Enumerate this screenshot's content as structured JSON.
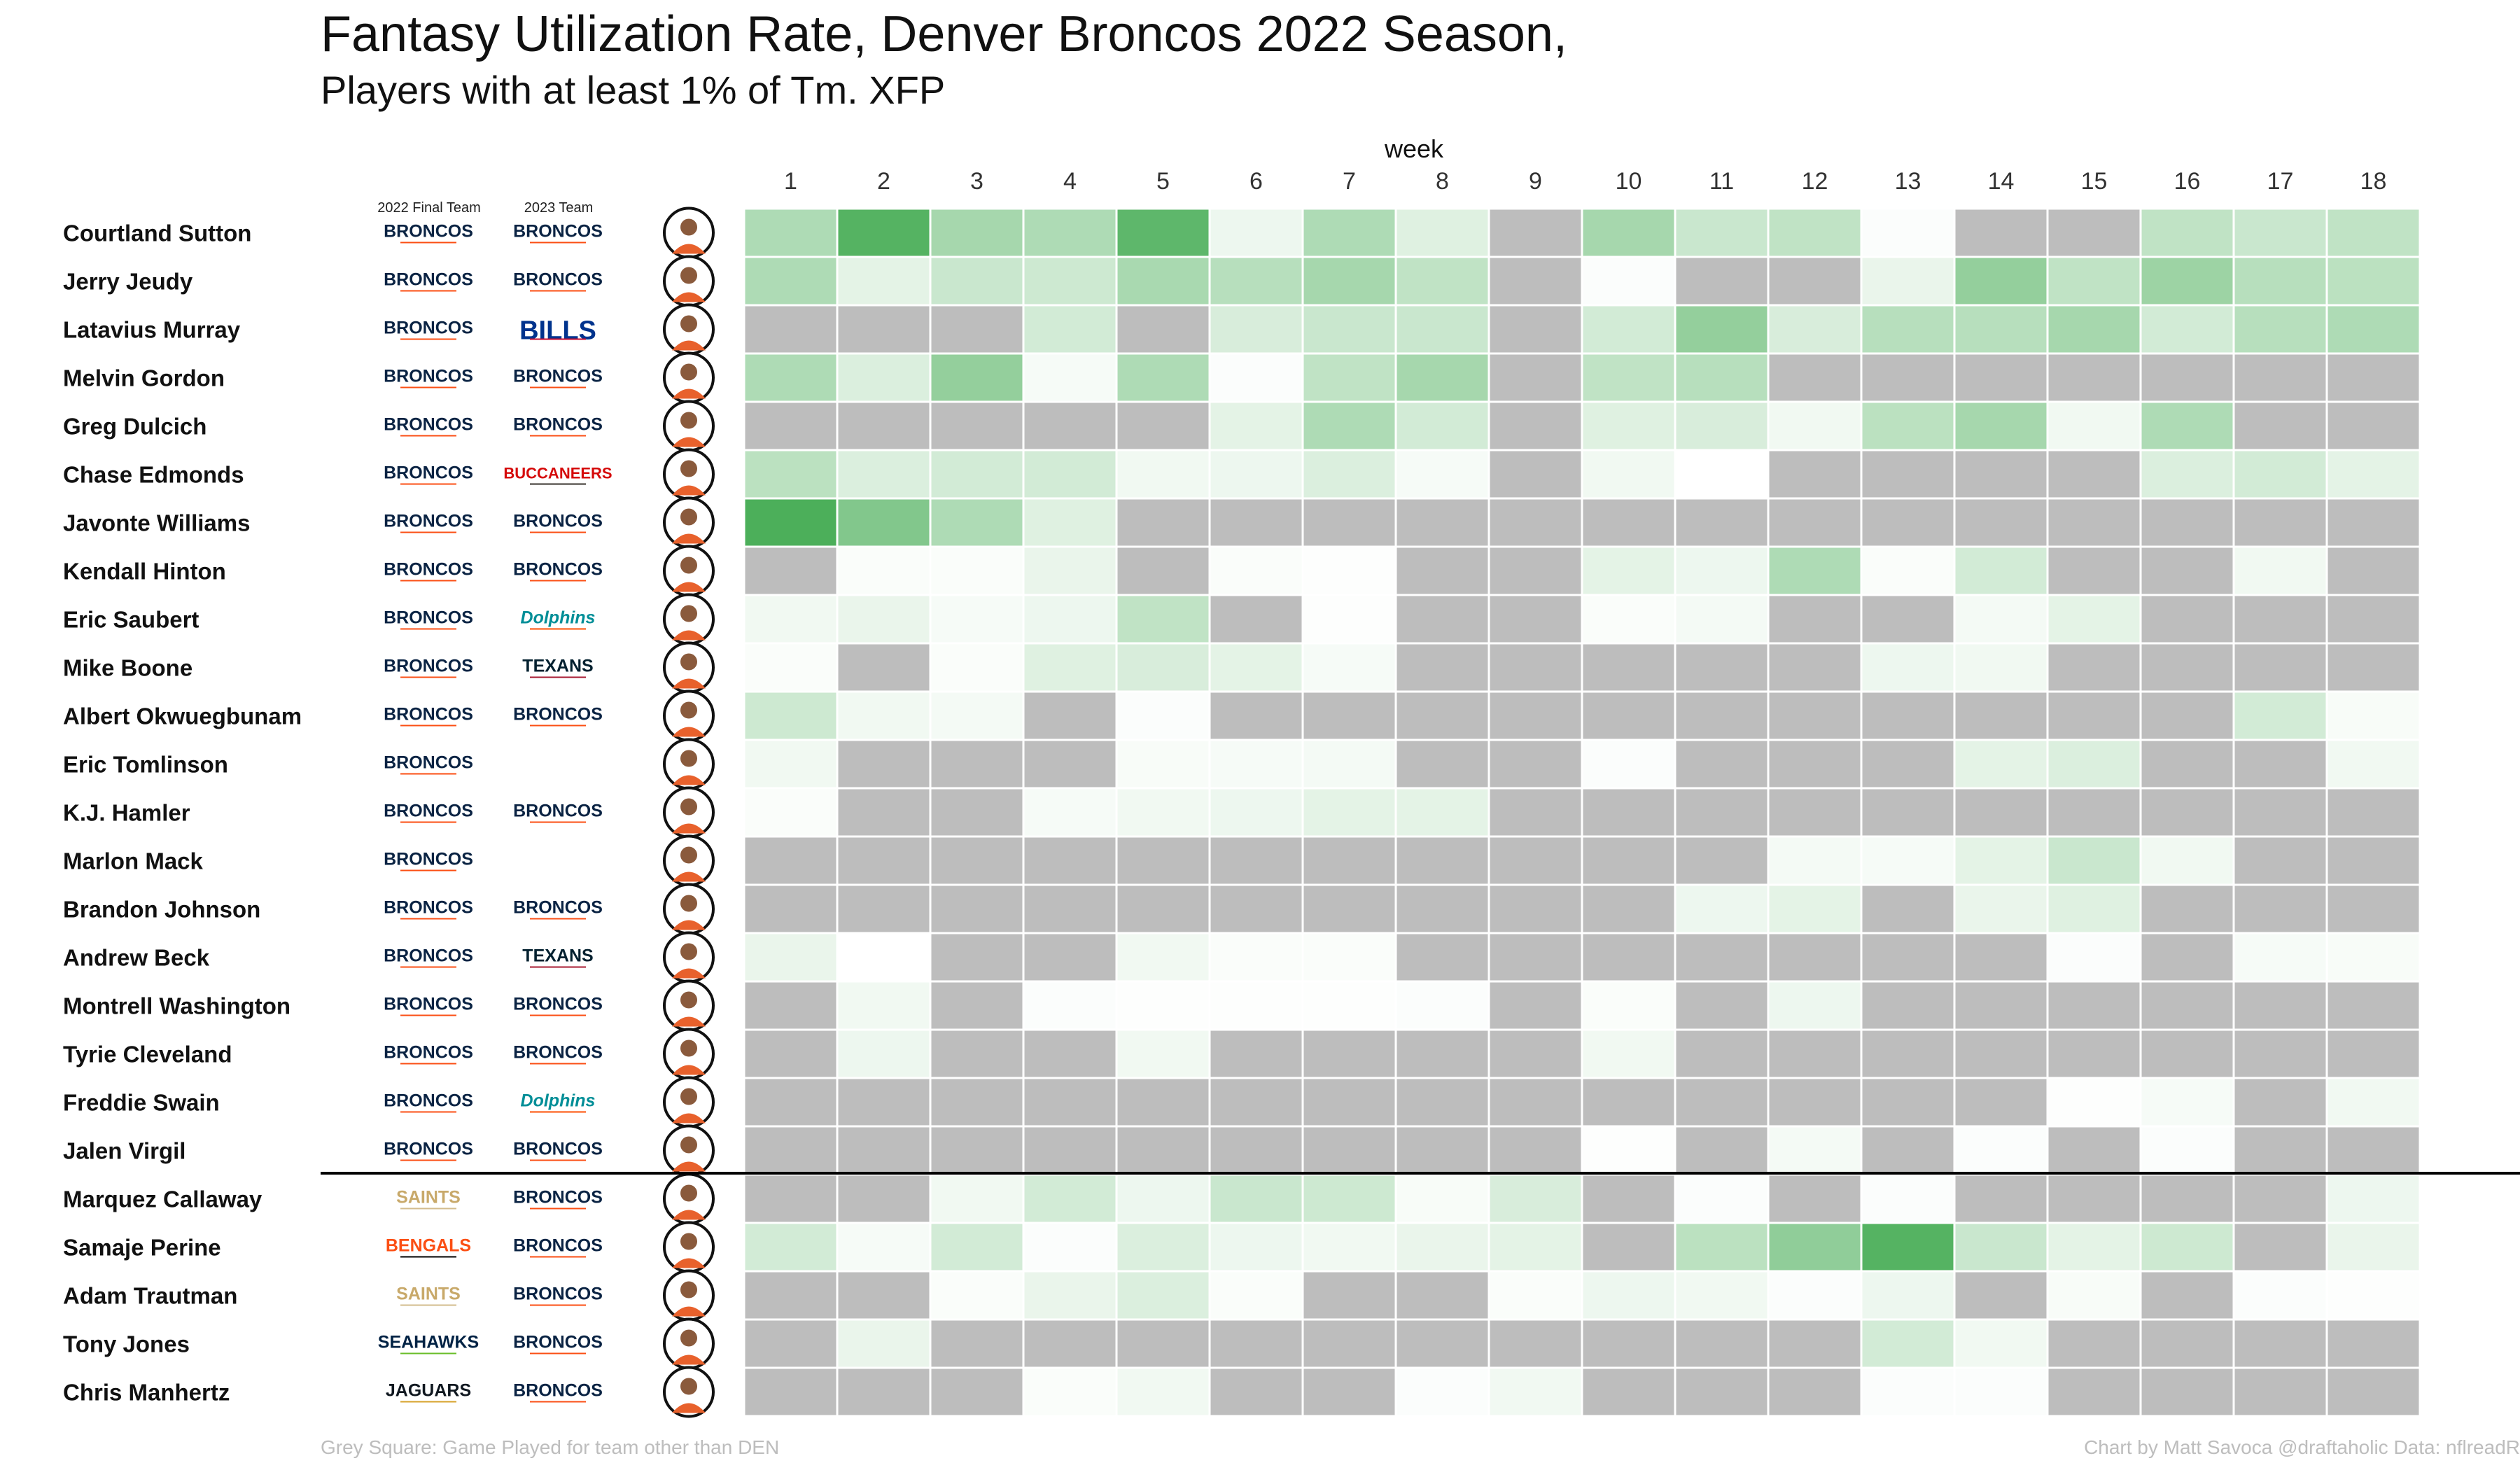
{
  "title": "Fantasy Utilization Rate, Denver Broncos 2022 Season,",
  "subtitle": "Players with at least 1% of Tm. XFP",
  "column_headers": {
    "final_team": "2022 Final Team",
    "next_team": "2023 Team"
  },
  "footer": {
    "left": "Grey Square: Game Played for team other than DEN",
    "right": "Chart by Matt Savoca   @draftaholic   Data: nflreadR"
  },
  "colors": {
    "grey": "#bdbdbd",
    "high": "#4caf5a",
    "low": "#ffffff",
    "separator": "#000000"
  },
  "team_logo_styles": {
    "BRONCOS": {
      "color": "#0a2343",
      "accent": "#fb4f14"
    },
    "BILLS": {
      "color": "#00338d",
      "accent": "#c60c30"
    },
    "BUCCANEERS": {
      "color": "#d50a0a",
      "accent": "#34302b"
    },
    "Dolphins": {
      "color": "#008e97",
      "accent": "#fc4c02"
    },
    "TEXANS": {
      "color": "#03202f",
      "accent": "#a71930"
    },
    "SAINTS": {
      "color": "#c8a96a",
      "accent": "#d3bc8d"
    },
    "BENGALS": {
      "color": "#fb4f14",
      "accent": "#000000"
    },
    "SEAHAWKS": {
      "color": "#002244",
      "accent": "#69be28"
    },
    "JAGUARS": {
      "color": "#101820",
      "accent": "#d7a22a"
    }
  },
  "chart_data": {
    "type": "heatmap",
    "x_label": "week",
    "weeks": [
      1,
      2,
      3,
      4,
      5,
      6,
      7,
      8,
      9,
      10,
      11,
      12,
      13,
      14,
      15,
      16,
      17,
      18
    ],
    "separator_after_row": 20,
    "value_scale": "relative utilization 0 to 1; null = grey (game played for team other than DEN or not with DEN)",
    "rows": [
      {
        "name": "Courtland Sutton",
        "team_2022": "BRONCOS",
        "team_2023": "BRONCOS",
        "values": [
          0.45,
          0.95,
          0.5,
          0.45,
          0.9,
          0.1,
          0.45,
          0.18,
          null,
          0.5,
          0.3,
          0.35,
          0.02,
          null,
          null,
          0.35,
          0.3,
          0.35
        ]
      },
      {
        "name": "Jerry Jeudy",
        "team_2022": "BRONCOS",
        "team_2023": "BRONCOS",
        "values": [
          0.45,
          0.15,
          0.3,
          0.28,
          0.48,
          0.4,
          0.5,
          0.35,
          null,
          0.02,
          null,
          null,
          0.12,
          0.6,
          0.35,
          0.55,
          0.4,
          0.38
        ]
      },
      {
        "name": "Latavius Murray",
        "team_2022": "BRONCOS",
        "team_2023": "BILLS",
        "values": [
          null,
          null,
          null,
          0.25,
          null,
          0.22,
          0.3,
          0.3,
          null,
          0.25,
          0.6,
          0.22,
          0.4,
          0.4,
          0.5,
          0.25,
          0.4,
          0.45
        ]
      },
      {
        "name": "Melvin Gordon",
        "team_2022": "BRONCOS",
        "team_2023": "BRONCOS",
        "values": [
          0.45,
          0.2,
          0.6,
          0.05,
          0.45,
          0.02,
          0.35,
          0.5,
          null,
          0.35,
          0.4,
          null,
          null,
          null,
          null,
          null,
          null,
          null
        ]
      },
      {
        "name": "Greg Dulcich",
        "team_2022": "BRONCOS",
        "team_2023": "BRONCOS",
        "values": [
          null,
          null,
          null,
          null,
          null,
          0.15,
          0.45,
          0.25,
          null,
          0.18,
          0.22,
          0.08,
          0.38,
          0.5,
          0.08,
          0.45,
          null,
          null
        ]
      },
      {
        "name": "Chase Edmonds",
        "team_2022": "BRONCOS",
        "team_2023": "BUCCANEERS",
        "values": [
          0.38,
          0.2,
          0.25,
          0.25,
          0.08,
          0.1,
          0.2,
          0.05,
          null,
          0.08,
          0.0,
          null,
          null,
          null,
          null,
          0.2,
          0.25,
          0.15
        ]
      },
      {
        "name": "Javonte Williams",
        "team_2022": "BRONCOS",
        "team_2023": "BRONCOS",
        "values": [
          1.0,
          0.7,
          0.45,
          0.18,
          null,
          null,
          null,
          null,
          null,
          null,
          null,
          null,
          null,
          null,
          null,
          null,
          null,
          null
        ]
      },
      {
        "name": "Kendall Hinton",
        "team_2022": "BRONCOS",
        "team_2023": "BRONCOS",
        "values": [
          null,
          0.03,
          0.03,
          0.12,
          null,
          0.03,
          0.01,
          null,
          null,
          0.15,
          0.1,
          0.45,
          0.03,
          0.25,
          null,
          null,
          0.08,
          null
        ]
      },
      {
        "name": "Eric Saubert",
        "team_2022": "BRONCOS",
        "team_2023": "Dolphins",
        "values": [
          0.08,
          0.12,
          0.05,
          0.1,
          0.35,
          null,
          0.01,
          null,
          null,
          0.03,
          0.06,
          null,
          null,
          0.06,
          0.15,
          null,
          null,
          null
        ]
      },
      {
        "name": "Mike Boone",
        "team_2022": "BRONCOS",
        "team_2023": "TEXANS",
        "values": [
          0.03,
          null,
          0.03,
          0.18,
          0.22,
          0.15,
          0.05,
          null,
          null,
          null,
          null,
          null,
          0.1,
          0.08,
          null,
          null,
          null,
          null
        ]
      },
      {
        "name": "Albert Okwuegbunam",
        "team_2022": "BRONCOS",
        "team_2023": "BRONCOS",
        "values": [
          0.28,
          0.08,
          0.06,
          null,
          0.02,
          null,
          null,
          null,
          null,
          null,
          null,
          null,
          null,
          null,
          null,
          null,
          0.25,
          0.04
        ]
      },
      {
        "name": "Eric Tomlinson",
        "team_2022": "BRONCOS",
        "team_2023": "",
        "values": [
          0.08,
          null,
          null,
          null,
          0.04,
          0.05,
          0.06,
          null,
          null,
          0.02,
          null,
          null,
          null,
          0.15,
          0.2,
          null,
          null,
          0.08
        ]
      },
      {
        "name": "K.J. Hamler",
        "team_2022": "BRONCOS",
        "team_2023": "BRONCOS",
        "values": [
          0.03,
          null,
          null,
          0.05,
          0.08,
          0.1,
          0.15,
          0.15,
          null,
          null,
          null,
          null,
          null,
          null,
          null,
          null,
          null,
          null
        ]
      },
      {
        "name": "Marlon Mack",
        "team_2022": "BRONCOS",
        "team_2023": "",
        "values": [
          null,
          null,
          null,
          null,
          null,
          null,
          null,
          null,
          null,
          null,
          null,
          0.06,
          0.05,
          0.15,
          0.3,
          0.08,
          null,
          null
        ]
      },
      {
        "name": "Brandon Johnson",
        "team_2022": "BRONCOS",
        "team_2023": "BRONCOS",
        "values": [
          null,
          null,
          null,
          null,
          null,
          null,
          null,
          null,
          null,
          null,
          0.1,
          0.15,
          null,
          0.12,
          0.18,
          null,
          null,
          null
        ]
      },
      {
        "name": "Andrew Beck",
        "team_2022": "BRONCOS",
        "team_2023": "TEXANS",
        "values": [
          0.12,
          0.0,
          null,
          null,
          0.08,
          0.03,
          0.03,
          null,
          null,
          null,
          null,
          null,
          null,
          null,
          0.02,
          null,
          0.05,
          0.04
        ]
      },
      {
        "name": "Montrell Washington",
        "team_2022": "BRONCOS",
        "team_2023": "BRONCOS",
        "values": [
          null,
          0.08,
          null,
          0.02,
          0.01,
          0.01,
          0.01,
          0.02,
          null,
          0.03,
          null,
          0.1,
          null,
          null,
          null,
          null,
          null,
          null
        ]
      },
      {
        "name": "Tyrie Cleveland",
        "team_2022": "BRONCOS",
        "team_2023": "BRONCOS",
        "values": [
          null,
          0.1,
          null,
          null,
          0.08,
          null,
          null,
          null,
          null,
          0.08,
          null,
          null,
          null,
          null,
          null,
          null,
          null,
          null
        ]
      },
      {
        "name": "Freddie Swain",
        "team_2022": "BRONCOS",
        "team_2023": "Dolphins",
        "values": [
          null,
          null,
          null,
          null,
          null,
          null,
          null,
          null,
          null,
          null,
          null,
          null,
          null,
          null,
          0.01,
          0.05,
          null,
          0.08
        ]
      },
      {
        "name": "Jalen Virgil",
        "team_2022": "BRONCOS",
        "team_2023": "BRONCOS",
        "values": [
          null,
          null,
          null,
          null,
          null,
          null,
          null,
          null,
          null,
          0.01,
          null,
          0.06,
          null,
          0.02,
          null,
          0.02,
          null,
          null
        ]
      },
      {
        "name": "Marquez Callaway",
        "team_2022": "SAINTS",
        "team_2023": "BRONCOS",
        "values": [
          null,
          null,
          0.08,
          0.25,
          0.1,
          0.3,
          0.28,
          0.04,
          0.22,
          null,
          0.02,
          null,
          0.02,
          null,
          null,
          null,
          null,
          0.1
        ]
      },
      {
        "name": "Samaje Perine",
        "team_2022": "BENGALS",
        "team_2023": "BRONCOS",
        "values": [
          0.25,
          0.05,
          0.25,
          0.02,
          0.2,
          0.1,
          0.08,
          0.12,
          0.15,
          null,
          0.38,
          0.62,
          0.95,
          0.3,
          0.15,
          0.28,
          null,
          0.12
        ]
      },
      {
        "name": "Adam Trautman",
        "team_2022": "SAINTS",
        "team_2023": "BRONCOS",
        "values": [
          null,
          null,
          0.03,
          0.12,
          0.2,
          0.03,
          null,
          null,
          0.03,
          0.1,
          0.08,
          0.02,
          0.1,
          null,
          0.04,
          null,
          0.02,
          0.01
        ]
      },
      {
        "name": "Tony Jones",
        "team_2022": "SEAHAWKS",
        "team_2023": "BRONCOS",
        "values": [
          null,
          0.12,
          null,
          null,
          null,
          null,
          null,
          null,
          null,
          null,
          null,
          null,
          0.25,
          0.08,
          null,
          null,
          null,
          null
        ]
      },
      {
        "name": "Chris Manhertz",
        "team_2022": "JAGUARS",
        "team_2023": "BRONCOS",
        "values": [
          null,
          null,
          null,
          0.03,
          0.08,
          null,
          null,
          0.02,
          0.08,
          null,
          null,
          null,
          0.02,
          0.02,
          null,
          null,
          null,
          null
        ]
      }
    ]
  }
}
